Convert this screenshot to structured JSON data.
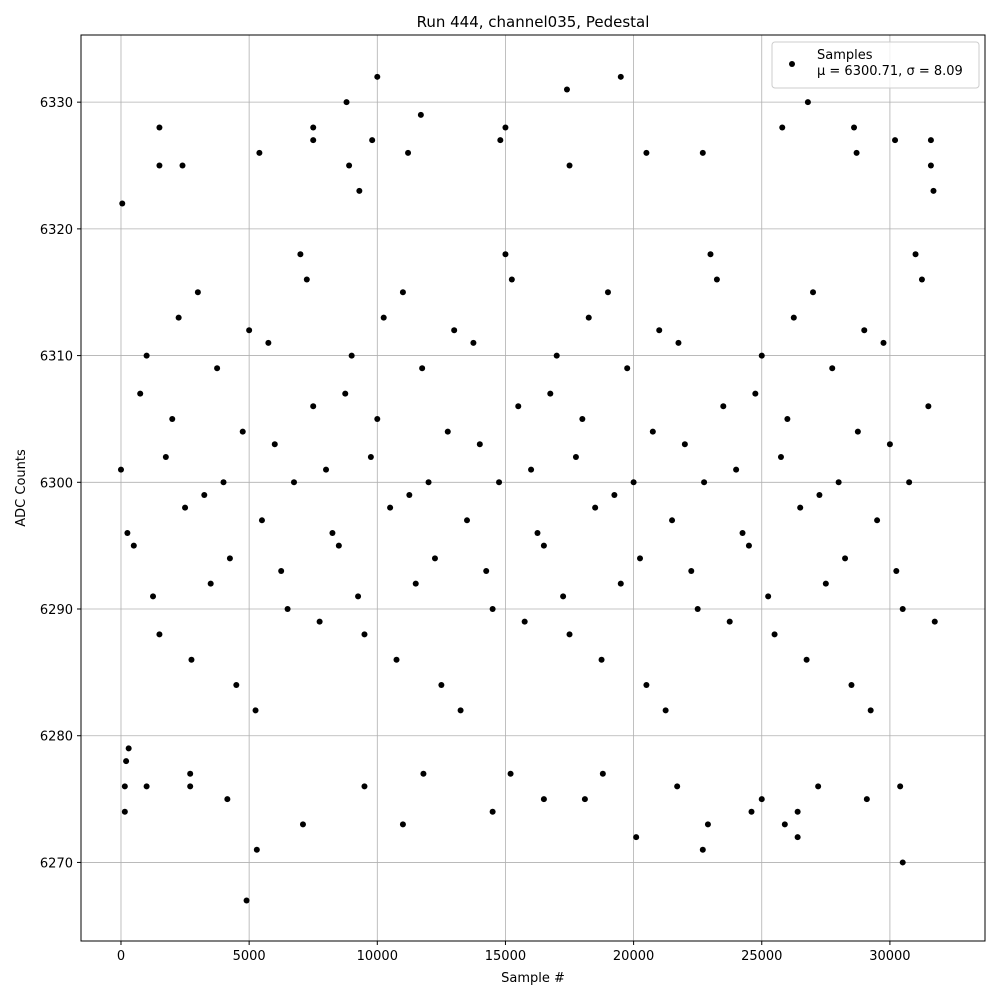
{
  "chart_data": {
    "type": "scatter",
    "title": "Run 444, channel035, Pedestal",
    "x_label": "Sample #",
    "y_label": "ADC Counts",
    "xlim": [
      -1560,
      33710
    ],
    "ylim": [
      6263.8,
      6335.3
    ],
    "xticks": [
      0,
      5000,
      10000,
      15000,
      20000,
      25000,
      30000
    ],
    "yticks": [
      6270,
      6280,
      6290,
      6300,
      6310,
      6320,
      6330
    ],
    "grid": true,
    "legend_position": "upper right",
    "legend_note": "μ = 6300.71, σ = 8.09",
    "x": [
      0,
      500,
      1000,
      1500,
      2000,
      2500,
      3000,
      3500,
      4000,
      4500,
      5000,
      5500,
      6000,
      6500,
      7000,
      7500,
      8000,
      8500,
      9000,
      9500,
      10000,
      10500,
      11000,
      11500,
      12000,
      12500,
      13000,
      13500,
      14000,
      14500,
      15000,
      15500,
      16000,
      16500,
      17000,
      17500,
      18000,
      18500,
      19000,
      19500,
      20000,
      20500,
      21000,
      21500,
      22000,
      22500,
      23000,
      23500,
      24000,
      24500,
      25000,
      25500,
      26000,
      26500,
      27000,
      27500,
      28000,
      28500,
      29000,
      29500,
      30000,
      30500,
      31000,
      31500,
      250,
      750,
      1250,
      1750,
      2250,
      2750,
      3250,
      3750,
      4250,
      4750,
      5250,
      5750,
      6250,
      6750,
      7250,
      7750,
      8250,
      8750,
      9250,
      9750,
      10250,
      10750,
      11250,
      11750,
      12250,
      12750,
      13250,
      13750,
      14250,
      14750,
      15250,
      15750,
      16250,
      16750,
      17250,
      17750,
      18250,
      18750,
      19250,
      19750,
      20250,
      20750,
      21250,
      21750,
      22250,
      22750,
      23250,
      23750,
      24250,
      24750,
      25250,
      25750,
      26250,
      26750,
      27250,
      27750,
      28250,
      28750,
      29250,
      29750,
      30250,
      30750,
      31250,
      31750,
      50,
      150,
      150,
      200,
      300,
      1000,
      1500,
      1500,
      2400,
      2700,
      2700,
      4150,
      4900,
      5300,
      5400,
      7100,
      7500,
      7500,
      8800,
      8900,
      9300,
      9500,
      9800,
      10000,
      11000,
      11200,
      11700,
      11800,
      14500,
      14800,
      15000,
      15200,
      16500,
      17400,
      17500,
      18100,
      18800,
      19500,
      20100,
      20500,
      21700,
      22700,
      22700,
      22900,
      24600,
      25000,
      25800,
      25900,
      26400,
      26400,
      26800,
      27200,
      28600,
      28700,
      29100,
      30200,
      30500,
      30400,
      31600,
      31600,
      31700
    ],
    "series": [
      {
        "name": "Samples",
        "color": "#000000",
        "values": [
          6301,
          6295,
          6310,
          6288,
          6305,
          6298,
          6315,
          6292,
          6300,
          6284,
          6312,
          6297,
          6303,
          6290,
          6318,
          6306,
          6301,
          6295,
          6310,
          6288,
          6305,
          6298,
          6315,
          6292,
          6300,
          6284,
          6312,
          6297,
          6303,
          6290,
          6318,
          6306,
          6301,
          6295,
          6310,
          6288,
          6305,
          6298,
          6315,
          6292,
          6300,
          6284,
          6312,
          6297,
          6303,
          6290,
          6318,
          6306,
          6301,
          6295,
          6310,
          6288,
          6305,
          6298,
          6315,
          6292,
          6300,
          6284,
          6312,
          6297,
          6303,
          6290,
          6318,
          6306,
          6296,
          6307,
          6291,
          6302,
          6313,
          6286,
          6299,
          6309,
          6294,
          6304,
          6282,
          6311,
          6293,
          6300,
          6316,
          6289,
          6296,
          6307,
          6291,
          6302,
          6313,
          6286,
          6299,
          6309,
          6294,
          6304,
          6282,
          6311,
          6293,
          6300,
          6316,
          6289,
          6296,
          6307,
          6291,
          6302,
          6313,
          6286,
          6299,
          6309,
          6294,
          6304,
          6282,
          6311,
          6293,
          6300,
          6316,
          6289,
          6296,
          6307,
          6291,
          6302,
          6313,
          6286,
          6299,
          6309,
          6294,
          6304,
          6282,
          6311,
          6293,
          6300,
          6316,
          6289,
          6322,
          6276,
          6274,
          6278,
          6279,
          6276,
          6328,
          6325,
          6325,
          6277,
          6276,
          6275,
          6267,
          6271,
          6326,
          6273,
          6328,
          6327,
          6330,
          6325,
          6323,
          6276,
          6327,
          6332,
          6273,
          6326,
          6329,
          6277,
          6274,
          6327,
          6328,
          6277,
          6275,
          6331,
          6325,
          6275,
          6277,
          6332,
          6272,
          6326,
          6276,
          6326,
          6271,
          6273,
          6274,
          6275,
          6328,
          6273,
          6272,
          6274,
          6330,
          6276,
          6328,
          6326,
          6275,
          6327,
          6270,
          6276,
          6327,
          6325,
          6323
        ]
      }
    ]
  }
}
